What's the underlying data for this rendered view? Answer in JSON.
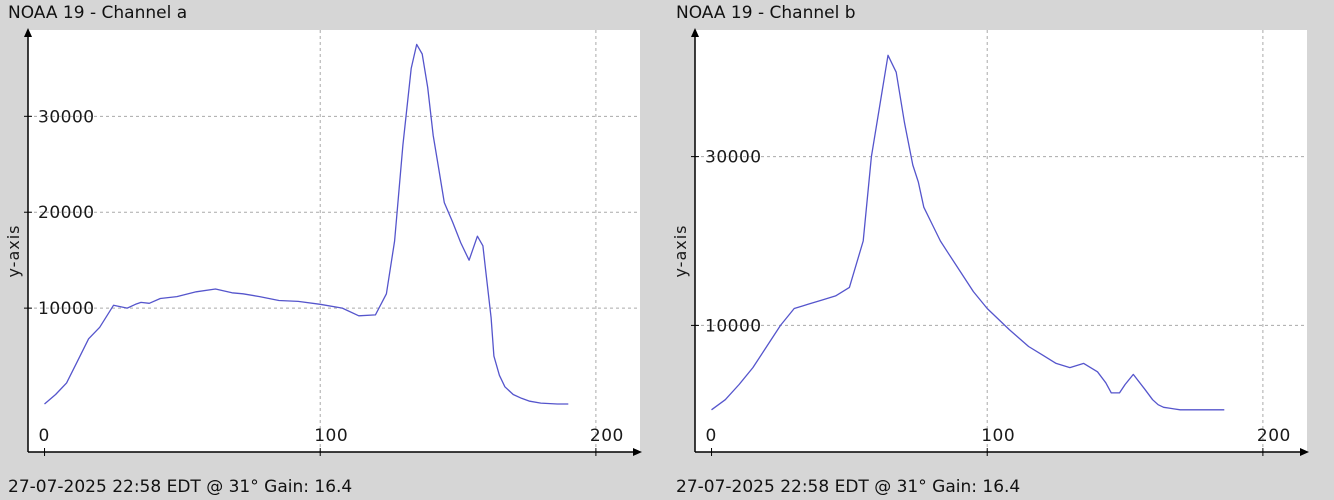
{
  "charts": [
    {
      "title": "NOAA 19 - Channel a",
      "footer": "27-07-2025 22:58 EDT @ 31° Gain: 16.4"
    },
    {
      "title": "NOAA 19 - Channel b",
      "footer": "27-07-2025 22:58 EDT @ 31° Gain: 16.4"
    }
  ],
  "colors": {
    "background": "#d6d6d6",
    "plot_bg": "#ffffff",
    "line": "#5555cc",
    "grid": "#aaaaaa",
    "axis": "#000000"
  },
  "chart_data": [
    {
      "type": "line",
      "title": "NOAA 19 - Channel a",
      "xlabel": "",
      "ylabel": "y-axis",
      "xlim": [
        -6,
        216
      ],
      "ylim": [
        -5000,
        39000
      ],
      "xticks": [
        0,
        100,
        200
      ],
      "yticks": [
        10000,
        20000,
        30000
      ],
      "grid": true,
      "series": [
        {
          "x": [
            0,
            4,
            8,
            12,
            16,
            20,
            25,
            30,
            33,
            35,
            38,
            42,
            48,
            55,
            62,
            68,
            72,
            78,
            85,
            92,
            100,
            108,
            114,
            120,
            124,
            127,
            130,
            133,
            135,
            137,
            139,
            141,
            143,
            145,
            148,
            151,
            154,
            157,
            159,
            160,
            162,
            163,
            165,
            167,
            170,
            173,
            176,
            180,
            186,
            190
          ],
          "values": [
            0,
            1000,
            2200,
            4500,
            6800,
            8000,
            10300,
            10000,
            10400,
            10600,
            10500,
            11000,
            11200,
            11700,
            12000,
            11600,
            11500,
            11200,
            10800,
            10700,
            10400,
            10000,
            9200,
            9300,
            11500,
            17000,
            27000,
            35000,
            37500,
            36500,
            33000,
            28000,
            24500,
            21000,
            19000,
            16800,
            15000,
            17500,
            16500,
            14000,
            9000,
            5000,
            3000,
            1800,
            1000,
            600,
            300,
            100,
            0,
            0
          ]
        }
      ]
    },
    {
      "type": "line",
      "title": "NOAA 19 - Channel b",
      "xlabel": "",
      "ylabel": "y-axis",
      "xlim": [
        -6,
        216
      ],
      "ylim": [
        -5000,
        45000
      ],
      "xticks": [
        0,
        100,
        200
      ],
      "yticks": [
        10000,
        30000
      ],
      "grid": true,
      "series": [
        {
          "x": [
            0,
            5,
            10,
            15,
            20,
            25,
            30,
            33,
            35,
            40,
            45,
            50,
            55,
            58,
            61,
            64,
            67,
            70,
            73,
            75,
            77,
            80,
            83,
            86,
            90,
            95,
            100,
            108,
            115,
            120,
            125,
            130,
            135,
            140,
            143,
            145,
            148,
            150,
            153,
            157,
            160,
            162,
            164,
            166,
            168,
            170,
            175,
            180,
            186
          ],
          "values": [
            0,
            1200,
            3000,
            5000,
            7500,
            10000,
            12000,
            12300,
            12500,
            13000,
            13500,
            14500,
            20000,
            30000,
            36000,
            42000,
            40000,
            34000,
            29000,
            27000,
            24000,
            22000,
            20000,
            18500,
            16500,
            14000,
            12000,
            9500,
            7500,
            6500,
            5500,
            5000,
            5500,
            4500,
            3200,
            2000,
            2000,
            3000,
            4200,
            2500,
            1200,
            600,
            300,
            200,
            100,
            0,
            0,
            0,
            0
          ]
        }
      ]
    }
  ]
}
